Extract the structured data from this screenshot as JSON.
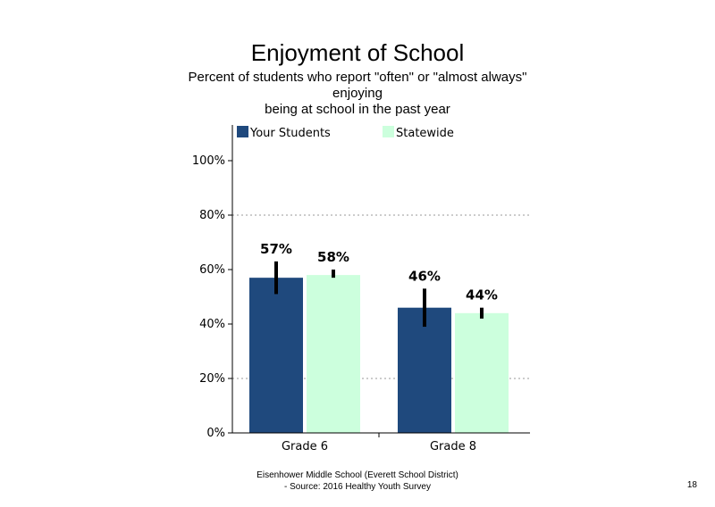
{
  "chart_data": {
    "type": "bar",
    "title": "Enjoyment of School",
    "subtitle_lines": [
      "Percent of students  who report \"often\" or \"almost always\"",
      "enjoying",
      "being at school in the past year"
    ],
    "categories": [
      "Grade 6",
      "Grade 8"
    ],
    "series": [
      {
        "name": "Your Students",
        "color": "#1f497d",
        "values": [
          57,
          46
        ],
        "labels": [
          "57%",
          "46%"
        ],
        "error_low": [
          51,
          39
        ],
        "error_high": [
          63,
          53
        ]
      },
      {
        "name": "Statewide",
        "color": "#ccffdd",
        "values": [
          58,
          44
        ],
        "labels": [
          "58%",
          "44%"
        ],
        "error_low": [
          57,
          42
        ],
        "error_high": [
          60,
          46
        ]
      }
    ],
    "ylim": [
      0,
      100
    ],
    "yticks": [
      0,
      20,
      40,
      60,
      80,
      100
    ],
    "ytick_labels": [
      "0%",
      "20%",
      "40%",
      "60%",
      "80%",
      "100%"
    ],
    "grid": "dotted horizontal at 20%, 80%",
    "legend_position": "top"
  },
  "footer": {
    "line1": "Eisenhower Middle School (Everett School District)",
    "line2": "- Source: 2016 Healthy  Youth Survey"
  },
  "page_number": "18"
}
